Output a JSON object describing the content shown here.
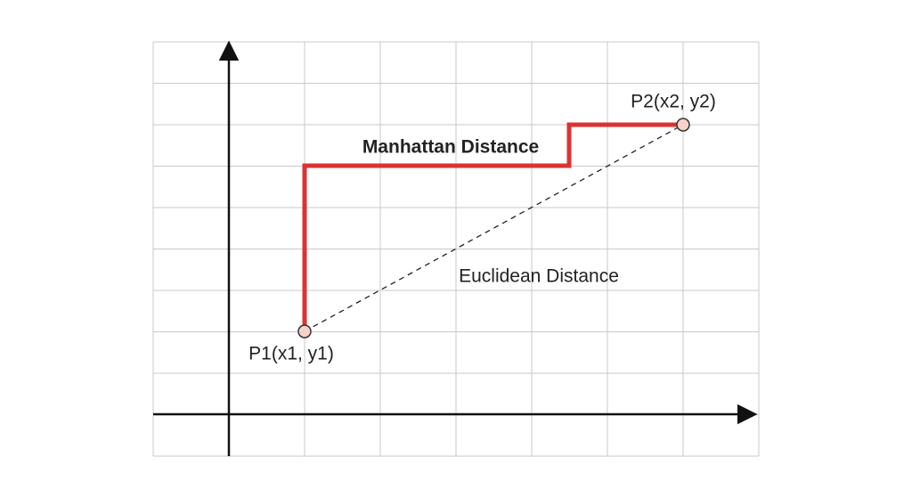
{
  "points": [
    {
      "label": "P1(x1, y1)"
    },
    {
      "label": "P2(x2, y2)"
    }
  ],
  "paths": [
    {
      "label": "Manhattan Distance"
    },
    {
      "label": "Euclidean Distance"
    }
  ]
}
